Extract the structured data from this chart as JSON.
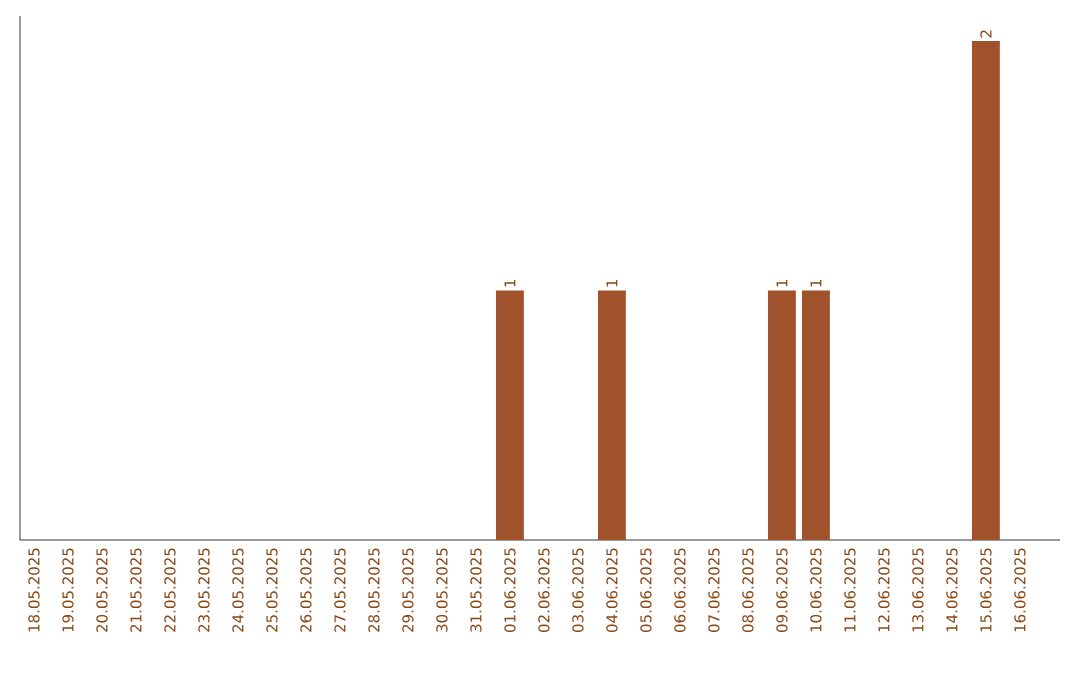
{
  "chart_data": {
    "type": "bar",
    "categories": [
      "18.05.2025",
      "19.05.2025",
      "20.05.2025",
      "21.05.2025",
      "22.05.2025",
      "23.05.2025",
      "24.05.2025",
      "25.05.2025",
      "26.05.2025",
      "27.05.2025",
      "28.05.2025",
      "29.05.2025",
      "30.05.2025",
      "31.05.2025",
      "01.06.2025",
      "02.06.2025",
      "03.06.2025",
      "04.06.2025",
      "05.06.2025",
      "06.06.2025",
      "07.06.2025",
      "08.06.2025",
      "09.06.2025",
      "10.06.2025",
      "11.06.2025",
      "12.06.2025",
      "13.06.2025",
      "14.06.2025",
      "15.06.2025",
      "16.06.2025"
    ],
    "values": [
      null,
      null,
      null,
      null,
      null,
      null,
      null,
      null,
      null,
      null,
      null,
      null,
      null,
      null,
      1,
      null,
      null,
      1,
      null,
      null,
      null,
      null,
      1,
      1,
      null,
      null,
      null,
      null,
      2,
      null
    ],
    "data_labels": true,
    "color": "#a0522d",
    "ylim": [
      0,
      2.1
    ]
  }
}
